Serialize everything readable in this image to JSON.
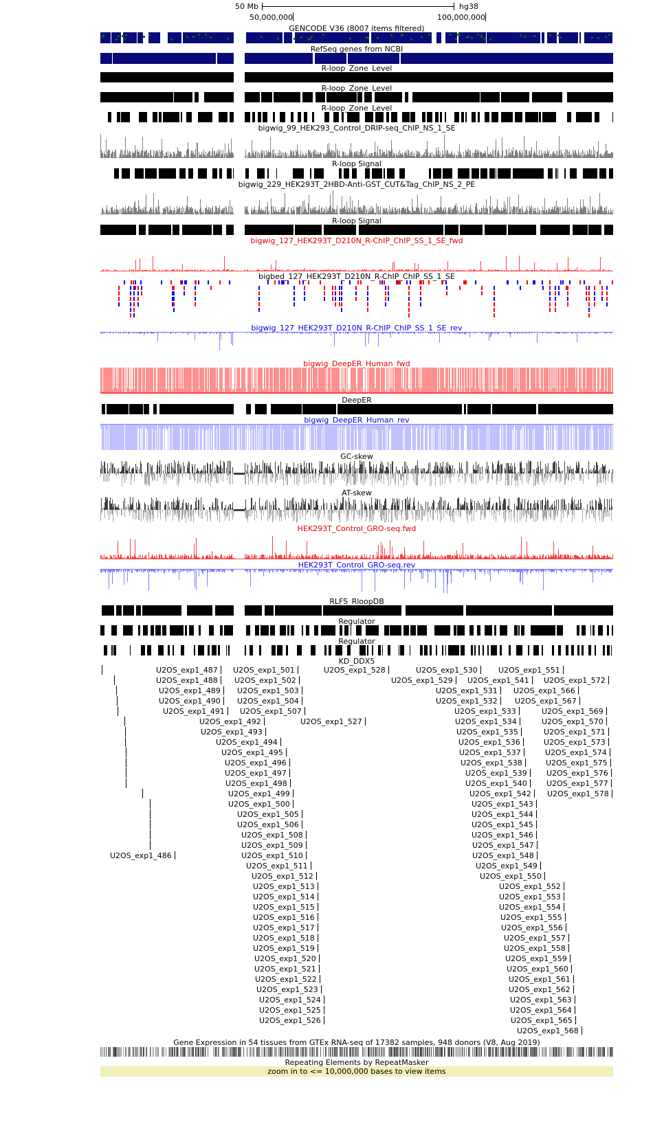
{
  "ruler": {
    "scale_label": "50 Mb",
    "assembly": "hg38",
    "pos_1": "50,000,000",
    "pos_2": "100,000,000"
  },
  "tracks": [
    {
      "label": "GENCODE V36 (8007 items filtered)",
      "color": "black",
      "kind": "gencode"
    },
    {
      "label": "RefSeq genes from NCBI",
      "color": "black",
      "kind": "refseq"
    },
    {
      "label": "R-loop_Zone_Level",
      "color": "black",
      "kind": "solid"
    },
    {
      "label": "R-loop_Zone_Level",
      "color": "black",
      "kind": "dense"
    },
    {
      "label": "R-loop_Zone_Level",
      "color": "black",
      "kind": "sparse"
    },
    {
      "label": "bigwig_99_HEK293_Control_DRIP-seq_ChIP_NS_1_SE",
      "color": "black",
      "kind": "gray_wig"
    },
    {
      "label": "R-loop Signal",
      "color": "black",
      "kind": "sparse"
    },
    {
      "label": "bigwig_229_HEK293T_2HBD-Anti-GST_CUT&Tag_ChIP_NS_2_PE",
      "color": "black",
      "kind": "gray_wig"
    },
    {
      "label": "R-loop Signal",
      "color": "black",
      "kind": "dense"
    },
    {
      "label": "bigwig_127_HEK293T_D210N_R-ChIP_ChIP_SS_1_SE_fwd",
      "color": "red",
      "kind": "red_wig_low"
    },
    {
      "label": "bigbed_127_HEK293T_D210N_R-ChIP_ChIP_SS_1_SE",
      "color": "black",
      "kind": "bigbed"
    },
    {
      "label": "bigwig_127_HEK293T_D210N_R-ChIP_ChIP_SS_1_SE_rev",
      "color": "blue",
      "kind": "blue_wig_low"
    },
    {
      "label": "bigwig_DeepER_Human_fwd",
      "color": "red",
      "kind": "red_fill"
    },
    {
      "label": "DeepER",
      "color": "black",
      "kind": "dense"
    },
    {
      "label": "bigwig_DeepER_Human_rev",
      "color": "blue",
      "kind": "blue_fill"
    },
    {
      "label": "GC-skew",
      "color": "black",
      "kind": "skew"
    },
    {
      "label": "AT-skew",
      "color": "black",
      "kind": "skew"
    },
    {
      "label": "HEK293T_Control_GRO-seq.fwd",
      "color": "red",
      "kind": "red_wig_mid"
    },
    {
      "label": "HEK293T_Control_GRO-seq.rev",
      "color": "blue",
      "kind": "blue_wig_mid"
    },
    {
      "label": "RLFS_RloopDB",
      "color": "black",
      "kind": "dense"
    },
    {
      "label": "Regulator",
      "color": "black",
      "kind": "sparse"
    },
    {
      "label": "Regulator",
      "color": "black",
      "kind": "sparse2"
    },
    {
      "label": "KD_DDX5",
      "color": "black",
      "kind": "none"
    }
  ],
  "kd_ddx5_items": [
    "U2OS_exp1_486",
    "U2OS_exp1_487",
    "U2OS_exp1_488",
    "U2OS_exp1_489",
    "U2OS_exp1_490",
    "U2OS_exp1_491",
    "U2OS_exp1_492",
    "U2OS_exp1_493",
    "U2OS_exp1_494",
    "U2OS_exp1_495",
    "U2OS_exp1_496",
    "U2OS_exp1_497",
    "U2OS_exp1_498",
    "U2OS_exp1_499",
    "U2OS_exp1_500",
    "U2OS_exp1_501",
    "U2OS_exp1_502",
    "U2OS_exp1_503",
    "U2OS_exp1_504",
    "U2OS_exp1_505",
    "U2OS_exp1_506",
    "U2OS_exp1_507",
    "U2OS_exp1_508",
    "U2OS_exp1_509",
    "U2OS_exp1_510",
    "U2OS_exp1_511",
    "U2OS_exp1_512",
    "U2OS_exp1_513",
    "U2OS_exp1_514",
    "U2OS_exp1_515",
    "U2OS_exp1_516",
    "U2OS_exp1_517",
    "U2OS_exp1_518",
    "U2OS_exp1_519",
    "U2OS_exp1_520",
    "U2OS_exp1_521",
    "U2OS_exp1_522",
    "U2OS_exp1_523",
    "U2OS_exp1_524",
    "U2OS_exp1_525",
    "U2OS_exp1_526",
    "U2OS_exp1_527",
    "U2OS_exp1_528",
    "U2OS_exp1_529",
    "U2OS_exp1_530",
    "U2OS_exp1_531",
    "U2OS_exp1_532",
    "U2OS_exp1_533",
    "U2OS_exp1_534",
    "U2OS_exp1_535",
    "U2OS_exp1_536",
    "U2OS_exp1_537",
    "U2OS_exp1_538",
    "U2OS_exp1_539",
    "U2OS_exp1_540",
    "U2OS_exp1_541",
    "U2OS_exp1_542",
    "U2OS_exp1_543",
    "U2OS_exp1_544",
    "U2OS_exp1_545",
    "U2OS_exp1_546",
    "U2OS_exp1_547",
    "U2OS_exp1_548",
    "U2OS_exp1_549",
    "U2OS_exp1_550",
    "U2OS_exp1_551",
    "U2OS_exp1_552",
    "U2OS_exp1_553",
    "U2OS_exp1_554",
    "U2OS_exp1_555",
    "U2OS_exp1_556",
    "U2OS_exp1_557",
    "U2OS_exp1_558",
    "U2OS_exp1_559",
    "U2OS_exp1_560",
    "U2OS_exp1_561",
    "U2OS_exp1_562",
    "U2OS_exp1_563",
    "U2OS_exp1_564",
    "U2OS_exp1_565",
    "U2OS_exp1_566",
    "U2OS_exp1_567",
    "U2OS_exp1_568",
    "U2OS_exp1_569",
    "U2OS_exp1_570",
    "U2OS_exp1_571",
    "U2OS_exp1_572",
    "U2OS_exp1_573",
    "U2OS_exp1_574",
    "U2OS_exp1_575",
    "U2OS_exp1_576",
    "U2OS_exp1_577",
    "U2OS_exp1_578"
  ],
  "gtex_label": "Gene Expression in 54 tissues from GTEx RNA-seq of 17382 samples, 948 donors (V8, Aug 2019)",
  "repeatmasker_label": "Repeating Elements by RepeatMasker",
  "zoom_message": "zoom in to <= 10,000,000 bases to view items",
  "colors": {
    "gencode_navy": "#0a0a78",
    "gencode_green": "#0a640a",
    "wig_gray": "#808080",
    "wig_red": "#ff4040",
    "wig_red_fill": "#ff9090",
    "wig_blue": "#8080ff",
    "wig_blue_fill": "#c0c0ff",
    "bigbed_red": "#ff0000",
    "bigbed_blue": "#0000ff",
    "zoom_bg": "#efefb8"
  }
}
